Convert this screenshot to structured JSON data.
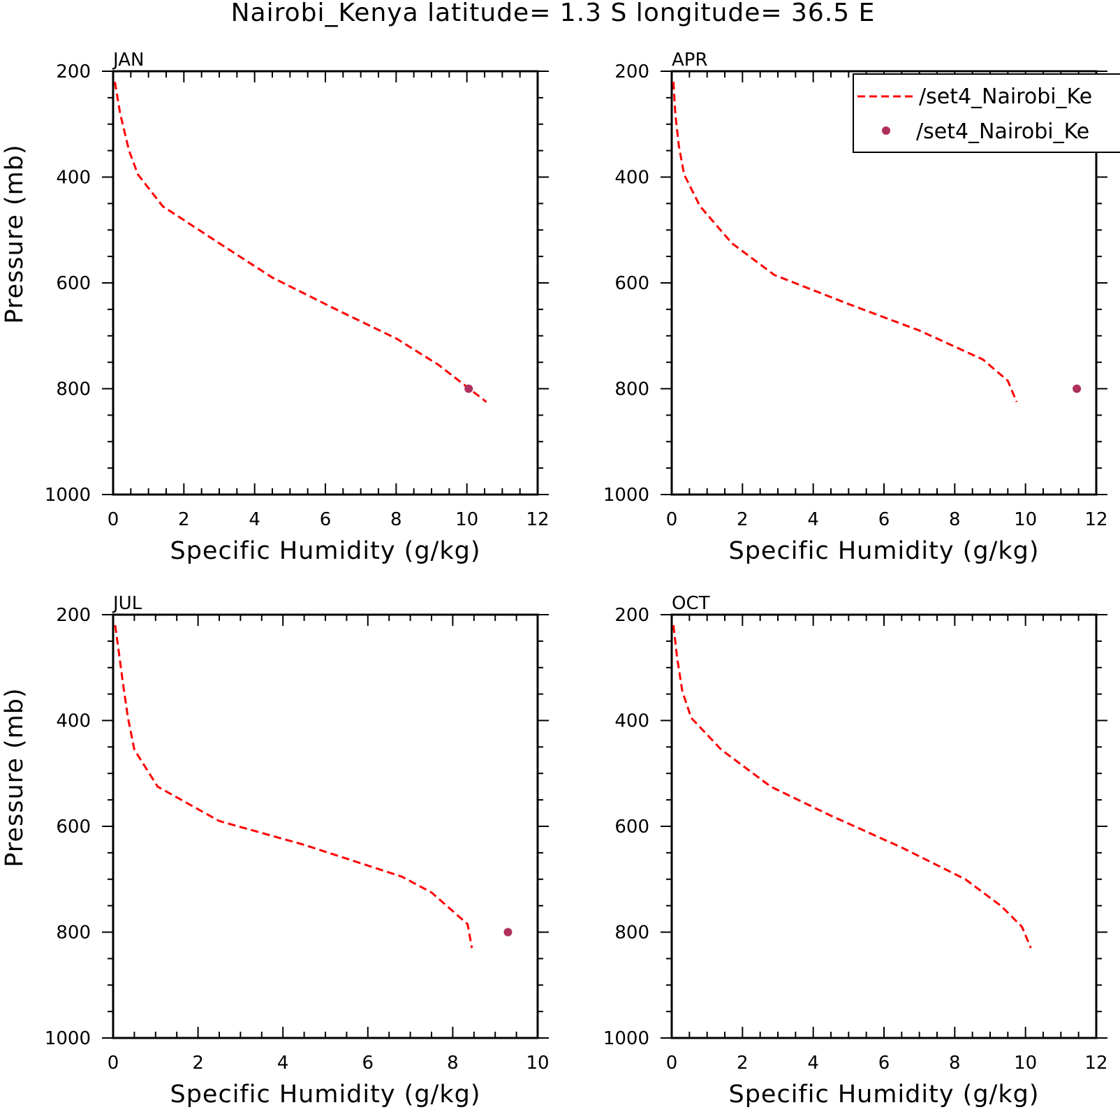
{
  "figure": {
    "title": "Nairobi_Kenya  latitude= 1.3 S longitude= 36.5 E",
    "legend": {
      "placement": "top-right of APR panel",
      "entries": [
        {
          "label": "/set4_Nairobi_Ke",
          "style": "dashed-line",
          "color": "#ff0000"
        },
        {
          "label": "/set4_Nairobi_Ke",
          "style": "marker",
          "color": "#b0305c"
        }
      ]
    }
  },
  "chart_data": [
    {
      "type": "line",
      "panel": "JAN",
      "xlabel": "Specific Humidity (g/kg)",
      "ylabel": "Pressure (mb)",
      "xlim": [
        0,
        12
      ],
      "ylim": [
        1000,
        200
      ],
      "xticks": [
        0,
        2,
        4,
        6,
        8,
        10,
        12
      ],
      "yticks": [
        200,
        400,
        600,
        800,
        1000
      ],
      "x_minor": 0.5,
      "y_minor": 50,
      "series": [
        {
          "style": "dashed",
          "color": "#ff0000",
          "x": [
            0.05,
            0.2,
            0.45,
            0.7,
            1.4,
            3.0,
            4.5,
            6.3,
            8.0,
            9.2,
            10.55
          ],
          "y": [
            220,
            280,
            350,
            395,
            455,
            525,
            590,
            650,
            705,
            755,
            825
          ]
        },
        {
          "style": "marker",
          "color": "#b0305c",
          "x": [
            10.05
          ],
          "y": [
            800
          ]
        }
      ]
    },
    {
      "type": "line",
      "panel": "APR",
      "xlabel": "Specific Humidity (g/kg)",
      "ylabel": "",
      "xlim": [
        0,
        12
      ],
      "ylim": [
        1000,
        200
      ],
      "xticks": [
        0,
        2,
        4,
        6,
        8,
        10,
        12
      ],
      "yticks": [
        200,
        400,
        600,
        800,
        1000
      ],
      "x_minor": 0.5,
      "y_minor": 50,
      "series": [
        {
          "style": "dashed",
          "color": "#ff0000",
          "x": [
            0.05,
            0.1,
            0.2,
            0.35,
            0.8,
            1.7,
            2.9,
            5.0,
            7.0,
            8.8,
            9.5,
            9.75
          ],
          "y": [
            220,
            280,
            340,
            395,
            455,
            525,
            585,
            640,
            690,
            745,
            785,
            825
          ]
        },
        {
          "style": "marker",
          "color": "#b0305c",
          "x": [
            11.45
          ],
          "y": [
            800
          ]
        }
      ]
    },
    {
      "type": "line",
      "panel": "JUL",
      "xlabel": "Specific Humidity (g/kg)",
      "ylabel": "Pressure (mb)",
      "xlim": [
        0,
        10
      ],
      "ylim": [
        1000,
        200
      ],
      "xticks": [
        0,
        2,
        4,
        6,
        8,
        10
      ],
      "yticks": [
        200,
        400,
        600,
        800,
        1000
      ],
      "x_minor": 0.5,
      "y_minor": 50,
      "series": [
        {
          "style": "dashed",
          "color": "#ff0000",
          "x": [
            0.05,
            0.15,
            0.25,
            0.35,
            0.5,
            1.05,
            2.5,
            4.5,
            6.8,
            7.5,
            8.35,
            8.45
          ],
          "y": [
            220,
            280,
            340,
            395,
            455,
            525,
            590,
            635,
            695,
            725,
            785,
            830
          ]
        },
        {
          "style": "marker",
          "color": "#b0305c",
          "x": [
            9.3
          ],
          "y": [
            800
          ]
        }
      ]
    },
    {
      "type": "line",
      "panel": "OCT",
      "xlabel": "Specific Humidity (g/kg)",
      "ylabel": "",
      "xlim": [
        0,
        12
      ],
      "ylim": [
        1000,
        200
      ],
      "xticks": [
        0,
        2,
        4,
        6,
        8,
        10,
        12
      ],
      "yticks": [
        200,
        400,
        600,
        800,
        1000
      ],
      "x_minor": 0.5,
      "y_minor": 50,
      "series": [
        {
          "style": "dashed",
          "color": "#ff0000",
          "x": [
            0.05,
            0.15,
            0.3,
            0.55,
            1.4,
            2.8,
            4.5,
            6.5,
            8.3,
            9.3,
            9.9,
            10.15
          ],
          "y": [
            220,
            280,
            345,
            395,
            455,
            525,
            580,
            640,
            700,
            750,
            790,
            830
          ]
        }
      ]
    }
  ]
}
